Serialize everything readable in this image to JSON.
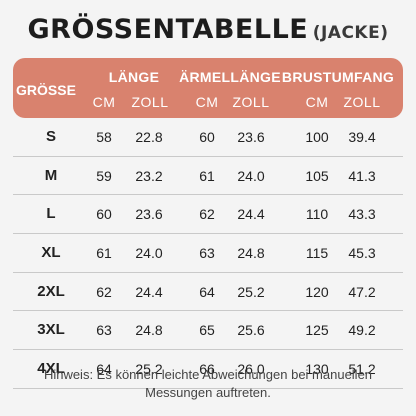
{
  "title": "GRÖSSENTABELLE",
  "subtitle": "(JACKE)",
  "header": {
    "size_label": "GRÖSSE",
    "groups": [
      "LÄNGE",
      "ÄRMELLÄNGE",
      "BRUSTUMFANG"
    ],
    "units": [
      "CM",
      "ZOLL"
    ]
  },
  "rows": [
    {
      "size": "S",
      "laenge_cm": "58",
      "laenge_zoll": "22.8",
      "aermel_cm": "60",
      "aermel_zoll": "23.6",
      "brust_cm": "100",
      "brust_zoll": "39.4"
    },
    {
      "size": "M",
      "laenge_cm": "59",
      "laenge_zoll": "23.2",
      "aermel_cm": "61",
      "aermel_zoll": "24.0",
      "brust_cm": "105",
      "brust_zoll": "41.3"
    },
    {
      "size": "L",
      "laenge_cm": "60",
      "laenge_zoll": "23.6",
      "aermel_cm": "62",
      "aermel_zoll": "24.4",
      "brust_cm": "110",
      "brust_zoll": "43.3"
    },
    {
      "size": "XL",
      "laenge_cm": "61",
      "laenge_zoll": "24.0",
      "aermel_cm": "63",
      "aermel_zoll": "24.8",
      "brust_cm": "115",
      "brust_zoll": "45.3"
    },
    {
      "size": "2XL",
      "laenge_cm": "62",
      "laenge_zoll": "24.4",
      "aermel_cm": "64",
      "aermel_zoll": "25.2",
      "brust_cm": "120",
      "brust_zoll": "47.2"
    },
    {
      "size": "3XL",
      "laenge_cm": "63",
      "laenge_zoll": "24.8",
      "aermel_cm": "65",
      "aermel_zoll": "25.6",
      "brust_cm": "125",
      "brust_zoll": "49.2"
    },
    {
      "size": "4XL",
      "laenge_cm": "64",
      "laenge_zoll": "25.2",
      "aermel_cm": "66",
      "aermel_zoll": "26.0",
      "brust_cm": "130",
      "brust_zoll": "51.2"
    }
  ],
  "footnote": "Hinweis: Es können leichte Abweichungen bei manuellen Messungen auftreten.",
  "colors": {
    "header_bg": "#d9826e",
    "header_text": "#ffffff",
    "background": "#f4f4f4"
  }
}
